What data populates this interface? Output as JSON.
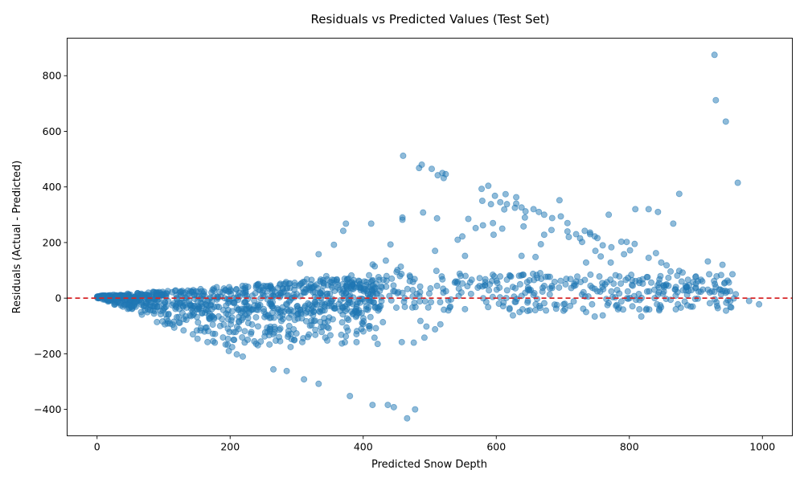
{
  "chart_data": {
    "type": "scatter",
    "title": "Residuals vs Predicted Values (Test Set)",
    "xlabel": "Predicted Snow Depth",
    "ylabel": "Residuals (Actual - Predicted)",
    "xlim": [
      -45,
      1045
    ],
    "ylim": [
      -495,
      935
    ],
    "xticks": [
      0,
      200,
      400,
      600,
      800,
      1000
    ],
    "yticks": [
      -400,
      -200,
      0,
      200,
      400,
      600,
      800
    ],
    "xtick_labels": [
      "0",
      "200",
      "400",
      "600",
      "800",
      "1000"
    ],
    "ytick_labels": [
      "−400",
      "−200",
      "0",
      "200",
      "400",
      "600",
      "800"
    ],
    "grid": false,
    "reference_line": {
      "y": 0,
      "color": "#d62728",
      "style": "dashed"
    },
    "point_color": "#1f77b4",
    "points": [
      [
        928,
        875
      ],
      [
        930,
        712
      ],
      [
        945,
        635
      ],
      [
        963,
        415
      ],
      [
        460,
        512
      ],
      [
        488,
        480
      ],
      [
        503,
        465
      ],
      [
        484,
        468
      ],
      [
        512,
        442
      ],
      [
        519,
        450
      ],
      [
        524,
        446
      ],
      [
        521,
        432
      ],
      [
        588,
        404
      ],
      [
        578,
        393
      ],
      [
        614,
        374
      ],
      [
        598,
        368
      ],
      [
        579,
        350
      ],
      [
        606,
        345
      ],
      [
        592,
        338
      ],
      [
        616,
        338
      ],
      [
        630,
        363
      ],
      [
        630,
        340
      ],
      [
        612,
        319
      ],
      [
        628,
        325
      ],
      [
        638,
        326
      ],
      [
        644,
        312
      ],
      [
        656,
        320
      ],
      [
        664,
        310
      ],
      [
        643,
        290
      ],
      [
        672,
        300
      ],
      [
        684,
        288
      ],
      [
        697,
        294
      ],
      [
        695,
        352
      ],
      [
        707,
        270
      ],
      [
        720,
        230
      ],
      [
        733,
        242
      ],
      [
        748,
        222
      ],
      [
        752,
        216
      ],
      [
        741,
        230
      ],
      [
        760,
        190
      ],
      [
        769,
        300
      ],
      [
        788,
        203
      ],
      [
        796,
        202
      ],
      [
        809,
        320
      ],
      [
        829,
        320
      ],
      [
        843,
        310
      ],
      [
        866,
        268
      ],
      [
        875,
        375
      ],
      [
        558,
        285
      ],
      [
        511,
        287
      ],
      [
        490,
        308
      ],
      [
        459,
        290
      ],
      [
        459,
        282
      ],
      [
        441,
        193
      ],
      [
        434,
        135
      ],
      [
        412,
        268
      ],
      [
        370,
        242
      ],
      [
        374,
        268
      ],
      [
        356,
        192
      ],
      [
        333,
        158
      ],
      [
        305,
        125
      ],
      [
        549,
        222
      ],
      [
        542,
        210
      ],
      [
        553,
        152
      ],
      [
        569,
        252
      ],
      [
        580,
        262
      ],
      [
        595,
        270
      ],
      [
        596,
        228
      ],
      [
        609,
        250
      ],
      [
        641,
        258
      ],
      [
        667,
        194
      ],
      [
        672,
        228
      ],
      [
        683,
        245
      ],
      [
        707,
        240
      ],
      [
        709,
        220
      ],
      [
        726,
        215
      ],
      [
        735,
        128
      ],
      [
        741,
        236
      ],
      [
        749,
        170
      ],
      [
        757,
        150
      ],
      [
        773,
        183
      ],
      [
        785,
        78
      ],
      [
        792,
        158
      ],
      [
        808,
        195
      ],
      [
        820,
        68
      ],
      [
        829,
        145
      ],
      [
        840,
        162
      ],
      [
        848,
        128
      ],
      [
        856,
        118
      ],
      [
        862,
        96
      ],
      [
        875,
        98
      ],
      [
        880,
        92
      ],
      [
        900,
        78
      ],
      [
        918,
        132
      ],
      [
        920,
        86
      ],
      [
        940,
        120
      ],
      [
        955,
        86
      ],
      [
        508,
        170
      ],
      [
        510,
        98
      ],
      [
        518,
        78
      ],
      [
        539,
        60
      ],
      [
        545,
        88
      ],
      [
        575,
        72
      ],
      [
        620,
        82
      ],
      [
        638,
        152
      ],
      [
        659,
        148
      ],
      [
        666,
        90
      ],
      [
        729,
        202
      ],
      [
        755,
        78
      ],
      [
        772,
        128
      ],
      [
        801,
        172
      ],
      [
        815,
        64
      ],
      [
        833,
        56
      ],
      [
        870,
        40
      ],
      [
        885,
        28
      ],
      [
        900,
        52
      ],
      [
        930,
        40
      ],
      [
        960,
        14
      ],
      [
        980,
        -10
      ],
      [
        995,
        -22
      ],
      [
        446,
        -392
      ],
      [
        437,
        -384
      ],
      [
        414,
        -384
      ],
      [
        478,
        -400
      ],
      [
        466,
        -432
      ],
      [
        380,
        -352
      ],
      [
        333,
        -308
      ],
      [
        311,
        -292
      ],
      [
        285,
        -262
      ],
      [
        265,
        -256
      ],
      [
        219,
        -210
      ],
      [
        210,
        -202
      ],
      [
        203,
        -176
      ],
      [
        198,
        -190
      ],
      [
        177,
        -160
      ],
      [
        166,
        -158
      ],
      [
        151,
        -146
      ],
      [
        144,
        -130
      ],
      [
        130,
        -116
      ],
      [
        116,
        -106
      ],
      [
        102,
        -94
      ],
      [
        90,
        -86
      ],
      [
        476,
        -160
      ],
      [
        458,
        -158
      ],
      [
        486,
        -82
      ],
      [
        492,
        -142
      ],
      [
        508,
        -112
      ],
      [
        495,
        -102
      ],
      [
        516,
        -94
      ],
      [
        528,
        -44
      ],
      [
        530,
        -34
      ],
      [
        419,
        -108
      ],
      [
        392,
        -14
      ],
      [
        343,
        -142
      ],
      [
        340,
        -102
      ],
      [
        328,
        -132
      ],
      [
        328,
        -114
      ],
      [
        326,
        -82
      ],
      [
        274,
        -114
      ],
      [
        225,
        -60
      ],
      [
        206,
        -150
      ],
      [
        185,
        -100
      ],
      [
        174,
        -128
      ],
      [
        197,
        -76
      ],
      [
        620,
        -40
      ],
      [
        625,
        -62
      ],
      [
        635,
        -50
      ],
      [
        647,
        -46
      ],
      [
        665,
        -28
      ],
      [
        690,
        -38
      ],
      [
        703,
        -20
      ],
      [
        735,
        -50
      ],
      [
        748,
        -66
      ],
      [
        760,
        -62
      ],
      [
        783,
        -40
      ],
      [
        818,
        -66
      ],
      [
        826,
        -38
      ],
      [
        845,
        -44
      ],
      [
        862,
        -6
      ],
      [
        873,
        -22
      ],
      [
        620,
        -36
      ],
      [
        604,
        -20
      ],
      [
        711,
        -28
      ],
      [
        744,
        -22
      ],
      [
        780,
        -28
      ],
      [
        788,
        -12
      ],
      [
        810,
        -6
      ],
      [
        838,
        0
      ]
    ]
  }
}
